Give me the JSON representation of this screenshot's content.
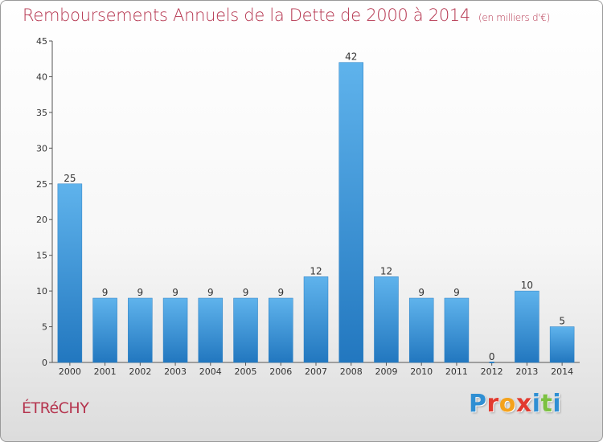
{
  "title": "Remboursements Annuels de la Dette de 2000 à 2014",
  "unit": "(en milliers d'€)",
  "town": "ÉTRéCHY",
  "logo": {
    "letters": [
      "P",
      "r",
      "o",
      "x",
      "i",
      "t",
      "i"
    ],
    "colors": [
      "#2f8fd3",
      "#e23a2f",
      "#f4a21c",
      "#e23a2f",
      "#2f8fd3",
      "#7cc142",
      "#2f8fd3"
    ]
  },
  "chart_data": {
    "type": "bar",
    "categories": [
      "2000",
      "2001",
      "2002",
      "2003",
      "2004",
      "2005",
      "2006",
      "2007",
      "2008",
      "2009",
      "2010",
      "2011",
      "2012",
      "2013",
      "2014"
    ],
    "values": [
      25,
      9,
      9,
      9,
      9,
      9,
      9,
      12,
      42,
      12,
      9,
      9,
      0,
      10,
      5
    ],
    "title": "Remboursements Annuels de la Dette de 2000 à 2014",
    "ylim": [
      0,
      45
    ],
    "yticks": [
      0,
      5,
      10,
      15,
      20,
      25,
      30,
      35,
      40,
      45
    ],
    "bar_color": "#3a96dd",
    "grid": false
  }
}
